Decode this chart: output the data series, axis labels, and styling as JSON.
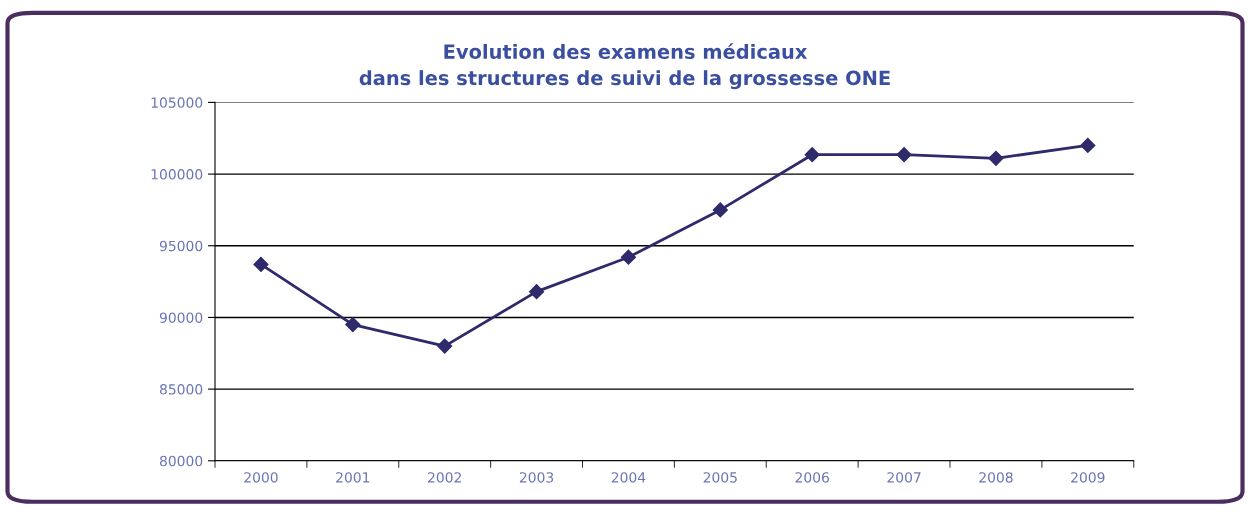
{
  "chart_data": {
    "type": "line",
    "title": "Evolution des examens médicaux\ndans les structures de suivi de la grossesse ONE",
    "categories": [
      "2000",
      "2001",
      "2002",
      "2003",
      "2004",
      "2005",
      "2006",
      "2007",
      "2008",
      "2009"
    ],
    "series": [
      {
        "color": "#2e2a6b",
        "values": [
          93700,
          89500,
          88000,
          91800,
          94200,
          97500,
          101350,
          101350,
          101100,
          102000
        ]
      }
    ],
    "ylim": [
      80000,
      105000
    ],
    "yticks": [
      80000,
      85000,
      90000,
      95000,
      100000,
      105000
    ],
    "grid": "y",
    "marker": "diamond",
    "line_style": "solid",
    "legend": false
  }
}
